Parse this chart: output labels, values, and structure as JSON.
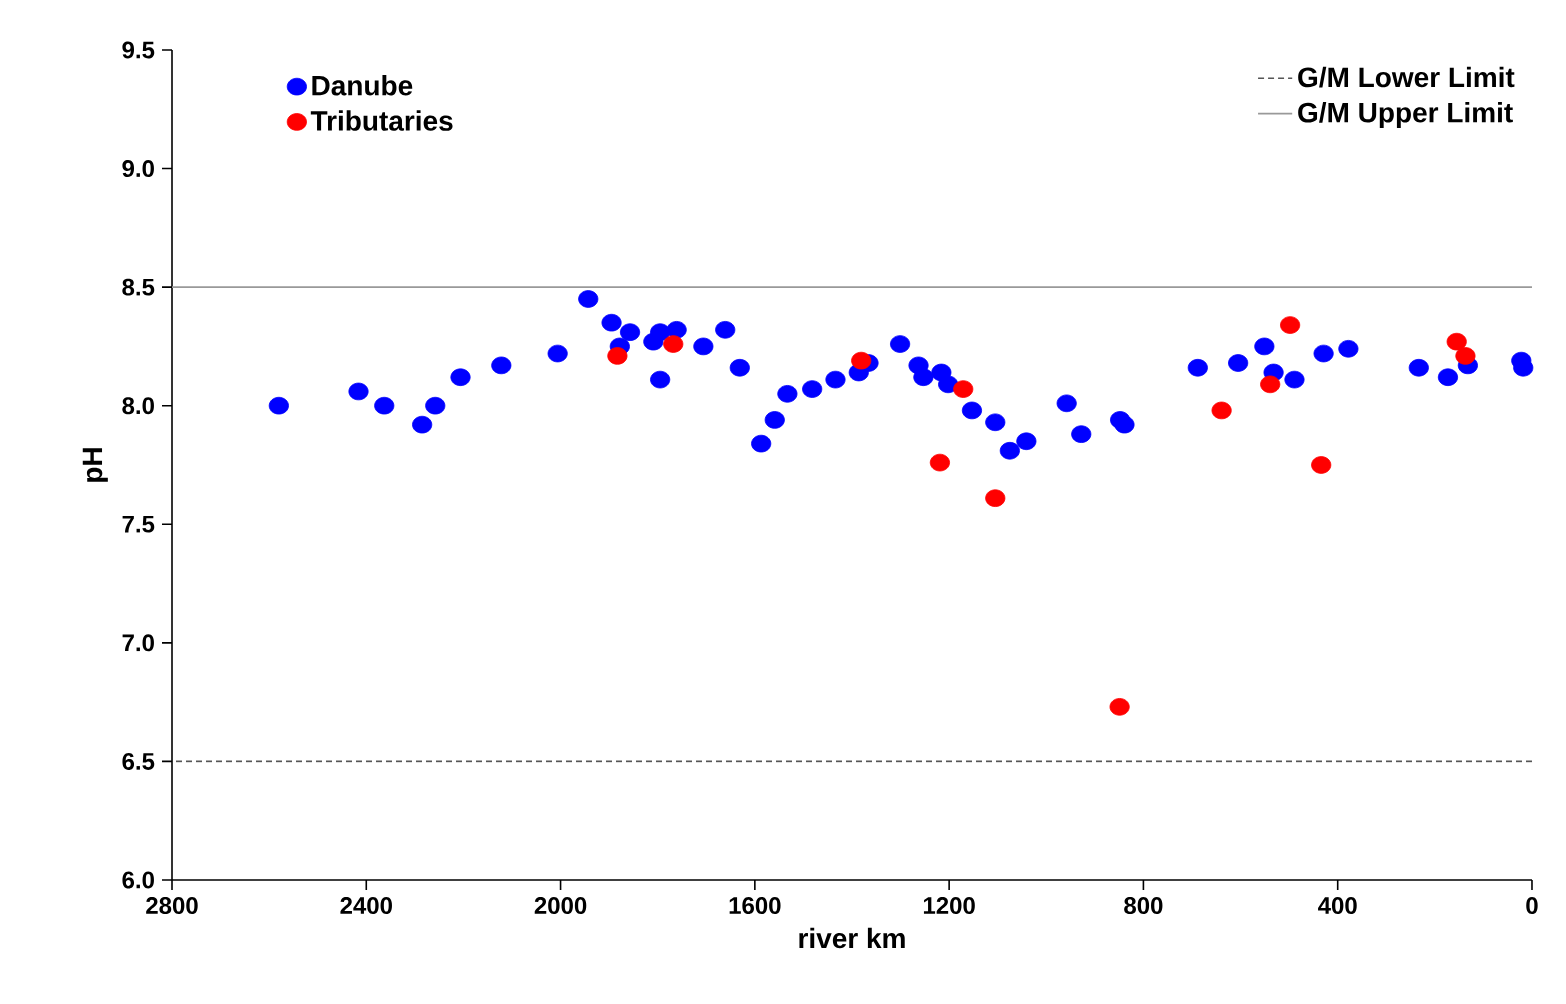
{
  "chart_data": {
    "type": "scatter",
    "xlabel": "river km",
    "ylabel": "pH",
    "xlim": [
      2800,
      0
    ],
    "ylim": [
      6.0,
      9.5
    ],
    "xticks": [
      2800,
      2400,
      2000,
      1600,
      1200,
      800,
      400,
      0
    ],
    "yticks": [
      {
        "value": 6.0,
        "label": "6.0"
      },
      {
        "value": 6.5,
        "label": "6.5"
      },
      {
        "value": 7.0,
        "label": "7.0"
      },
      {
        "value": 7.5,
        "label": "7.5"
      },
      {
        "value": 8.0,
        "label": "8.0"
      },
      {
        "value": 8.5,
        "label": "8.5"
      },
      {
        "value": 9.0,
        "label": "9.0"
      },
      {
        "value": 9.5,
        "label": "9.5"
      }
    ],
    "marker": "circle",
    "grid": false,
    "legend": "top left",
    "series": [
      {
        "name": "Danube",
        "color": "#0000ff",
        "x": [
          2580,
          2416,
          2363,
          2285,
          2258,
          2206,
          2122,
          2006,
          1943,
          1895,
          1857,
          1878,
          1809,
          1795,
          1761,
          1795,
          1706,
          1661,
          1631,
          1587,
          1559,
          1533,
          1482,
          1434,
          1386,
          1366,
          1301,
          1263,
          1253,
          1216,
          1202,
          1153,
          1105,
          1075,
          1041,
          958,
          928,
          848,
          839,
          688,
          605,
          551,
          532,
          489,
          429,
          378,
          233,
          173,
          132,
          22,
          18
        ],
        "values": [
          8.0,
          8.06,
          8.0,
          7.92,
          8.0,
          8.12,
          8.17,
          8.22,
          8.45,
          8.35,
          8.31,
          8.25,
          8.27,
          8.31,
          8.32,
          8.11,
          8.25,
          8.32,
          8.16,
          7.84,
          7.94,
          8.05,
          8.07,
          8.11,
          8.14,
          8.18,
          8.26,
          8.17,
          8.12,
          8.14,
          8.09,
          7.98,
          7.93,
          7.81,
          7.85,
          8.01,
          7.88,
          7.94,
          7.92,
          8.16,
          8.18,
          8.25,
          8.14,
          8.11,
          8.22,
          8.24,
          8.16,
          8.12,
          8.17,
          8.19,
          8.16
        ]
      },
      {
        "name": "Tributaries",
        "color": "#ff0000",
        "x": [
          1883,
          1768,
          1381,
          1171,
          1219,
          1105,
          849,
          639,
          498,
          539,
          434,
          155,
          137
        ],
        "values": [
          8.21,
          8.26,
          8.19,
          8.07,
          7.76,
          7.61,
          6.73,
          7.98,
          8.34,
          8.09,
          7.75,
          8.27,
          8.21
        ]
      }
    ],
    "ref_lines": [
      {
        "axis": "y",
        "value": 6.5,
        "label": "G/M Lower Limit",
        "line_style": "dashed",
        "color": "#555555"
      },
      {
        "axis": "y",
        "value": 8.5,
        "label": "G/M Upper Limit",
        "line_style": "solid",
        "color": "#999999"
      }
    ]
  }
}
